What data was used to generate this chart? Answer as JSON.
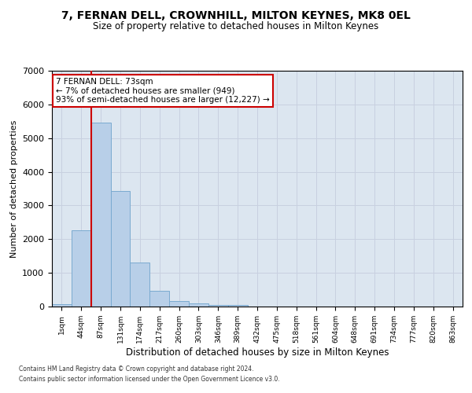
{
  "title": "7, FERNAN DELL, CROWNHILL, MILTON KEYNES, MK8 0EL",
  "subtitle": "Size of property relative to detached houses in Milton Keynes",
  "xlabel": "Distribution of detached houses by size in Milton Keynes",
  "ylabel": "Number of detached properties",
  "footer_line1": "Contains HM Land Registry data © Crown copyright and database right 2024.",
  "footer_line2": "Contains public sector information licensed under the Open Government Licence v3.0.",
  "categories": [
    "1sqm",
    "44sqm",
    "87sqm",
    "131sqm",
    "174sqm",
    "217sqm",
    "260sqm",
    "303sqm",
    "346sqm",
    "389sqm",
    "432sqm",
    "475sqm",
    "518sqm",
    "561sqm",
    "604sqm",
    "648sqm",
    "691sqm",
    "734sqm",
    "777sqm",
    "820sqm",
    "863sqm"
  ],
  "bar_values": [
    75,
    2270,
    5470,
    3440,
    1310,
    460,
    155,
    90,
    55,
    40,
    0,
    0,
    0,
    0,
    0,
    0,
    0,
    0,
    0,
    0,
    0
  ],
  "bar_color": "#b8cfe8",
  "bar_edge_color": "#7aaad0",
  "bar_edge_width": 0.7,
  "grid_color": "#c8d0e0",
  "bg_color": "#dce6f0",
  "ylim": [
    0,
    7000
  ],
  "yticks": [
    0,
    1000,
    2000,
    3000,
    4000,
    5000,
    6000,
    7000
  ],
  "red_line_color": "#cc0000",
  "annotation_text_line1": "7 FERNAN DELL: 73sqm",
  "annotation_text_line2": "← 7% of detached houses are smaller (949)",
  "annotation_text_line3": "93% of semi-detached houses are larger (12,227) →",
  "annotation_box_facecolor": "#ffffff",
  "annotation_border_color": "#cc0000",
  "red_line_bin": 2
}
